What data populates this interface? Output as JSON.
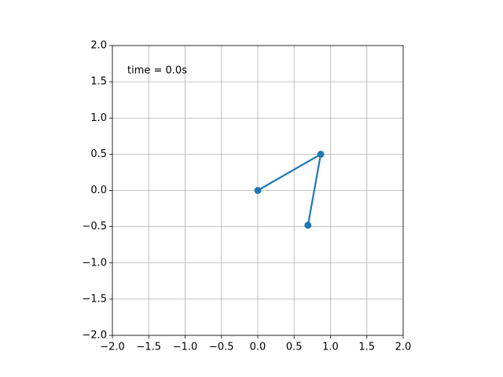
{
  "chart_data": {
    "type": "line",
    "annotation": "time = 0.0s",
    "x": [
      0,
      0.866,
      0.69
    ],
    "values": [
      0,
      0.5,
      -0.48
    ],
    "color": "#1f77b4",
    "xlim": [
      -2,
      2
    ],
    "ylim": [
      -2,
      2
    ],
    "xticks": [
      {
        "value": -2,
        "label": "−2.0"
      },
      {
        "value": -1.5,
        "label": "−1.5"
      },
      {
        "value": -1,
        "label": "−1.0"
      },
      {
        "value": -0.5,
        "label": "−0.5"
      },
      {
        "value": 0,
        "label": "0.0"
      },
      0.5,
      {
        "value": 1,
        "label": "1.0"
      },
      1.5,
      {
        "value": 2,
        "label": "2.0"
      }
    ],
    "yticks": [
      {
        "value": -2,
        "label": "−2.0"
      },
      {
        "value": -1.5,
        "label": "−1.5"
      },
      {
        "value": -1,
        "label": "−1.0"
      },
      {
        "value": -0.5,
        "label": "−0.5"
      },
      {
        "value": 0,
        "label": "0.0"
      },
      0.5,
      {
        "value": 1,
        "label": "1.0"
      },
      1.5,
      {
        "value": 2,
        "label": "2.0"
      }
    ],
    "grid": true
  }
}
